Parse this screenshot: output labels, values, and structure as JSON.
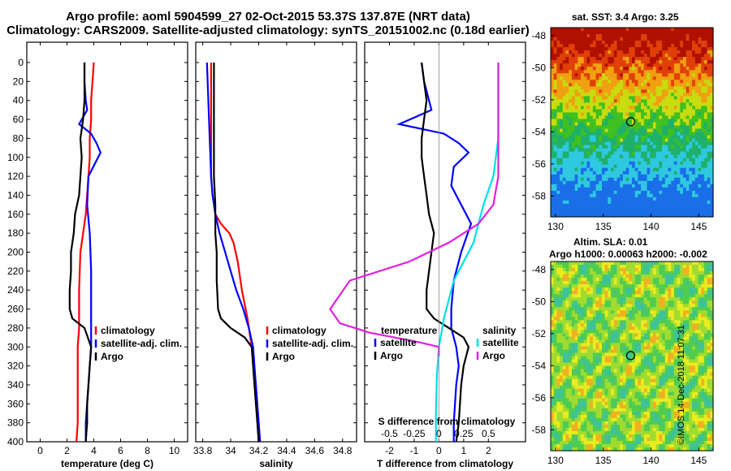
{
  "header": {
    "line1": "Argo profile: aoml 5904599_27 02-Oct-2015 53.37S 137.87E (NRT data)",
    "line2": "Climatology: CARS2009. Satellite-adjusted climatology: synTS_20151002.nc (0.18d earlier)"
  },
  "colors": {
    "climatology": "#ff0000",
    "satellite_adj": "#0000ff",
    "argo": "#000000",
    "s_satellite": "#00e0e8",
    "s_argo": "#e020e0"
  },
  "chart_data": [
    {
      "type": "line",
      "name": "temperature-profile",
      "xlabel": "temperature (deg C)",
      "ylabel": "",
      "xlim": [
        -1,
        11
      ],
      "ylim": [
        400,
        0
      ],
      "xticks": [
        "0",
        "2",
        "4",
        "6",
        "8",
        "10"
      ],
      "yticks": [
        "0",
        "20",
        "40",
        "60",
        "80",
        "100",
        "120",
        "140",
        "160",
        "180",
        "200",
        "220",
        "240",
        "260",
        "280",
        "300",
        "320",
        "340",
        "360",
        "380",
        "400"
      ],
      "legend": [
        "climatology",
        "satellite-adj. clim.",
        "Argo"
      ],
      "series": [
        {
          "name": "climatology",
          "color": "#ff0000",
          "x": [
            4.0,
            3.9,
            3.8,
            3.8,
            3.7,
            3.7,
            3.6,
            3.5,
            3.4,
            3.2,
            3.0,
            2.9,
            2.9,
            2.8,
            2.8,
            2.8,
            2.7
          ],
          "depth": [
            0,
            20,
            40,
            60,
            80,
            100,
            120,
            140,
            160,
            180,
            200,
            240,
            280,
            300,
            340,
            380,
            400
          ]
        },
        {
          "name": "satellite-adj. clim.",
          "color": "#0000ff",
          "x": [
            3.3,
            3.3,
            3.4,
            3.5,
            2.9,
            3.8,
            4.2,
            4.5,
            3.6,
            3.5,
            3.7,
            3.8,
            3.8,
            3.8,
            3.8,
            3.7,
            3.6,
            3.4,
            3.4
          ],
          "depth": [
            0,
            20,
            40,
            50,
            65,
            75,
            85,
            95,
            120,
            150,
            180,
            220,
            260,
            280,
            300,
            320,
            340,
            380,
            400
          ]
        },
        {
          "name": "Argo",
          "color": "#000000",
          "x": [
            3.3,
            3.3,
            3.3,
            3.2,
            3.0,
            3.1,
            3.0,
            2.9,
            2.6,
            2.5,
            2.3,
            2.3,
            2.2,
            2.2,
            2.4,
            3.3,
            3.8,
            3.7,
            3.6,
            3.5,
            3.5,
            3.4
          ],
          "depth": [
            0,
            20,
            40,
            60,
            80,
            100,
            120,
            140,
            160,
            180,
            200,
            220,
            240,
            260,
            270,
            280,
            300,
            320,
            340,
            360,
            380,
            400
          ]
        }
      ]
    },
    {
      "type": "line",
      "name": "salinity-profile",
      "xlabel": "salinity",
      "xlim": [
        33.75,
        34.9
      ],
      "ylim": [
        400,
        0
      ],
      "xticks": [
        "33.8",
        "34",
        "34.2",
        "34.4",
        "34.6",
        "34.8"
      ],
      "legend": [
        "climatology",
        "satellite-adj. clim.",
        "Argo"
      ],
      "series": [
        {
          "name": "climatology",
          "color": "#ff0000",
          "x": [
            33.86,
            33.86,
            33.86,
            33.86,
            33.87,
            33.89,
            33.93,
            33.99,
            34.02,
            34.05,
            34.08,
            34.12,
            34.15,
            34.18,
            34.2,
            34.21
          ],
          "depth": [
            0,
            40,
            80,
            120,
            140,
            160,
            170,
            180,
            190,
            210,
            240,
            270,
            300,
            340,
            380,
            400
          ]
        },
        {
          "name": "satellite-adj. clim.",
          "color": "#0000ff",
          "x": [
            33.83,
            33.84,
            33.85,
            33.86,
            33.87,
            33.89,
            33.92,
            33.96,
            34.0,
            34.04,
            34.09,
            34.13,
            34.16,
            34.18,
            34.2,
            34.21
          ],
          "depth": [
            0,
            40,
            80,
            120,
            140,
            160,
            180,
            200,
            220,
            240,
            260,
            280,
            300,
            340,
            380,
            400
          ]
        },
        {
          "name": "Argo",
          "color": "#000000",
          "x": [
            33.88,
            33.88,
            33.88,
            33.88,
            33.89,
            33.89,
            33.9,
            33.9,
            33.91,
            33.93,
            34.0,
            34.1,
            34.15,
            34.17,
            34.19,
            34.2
          ],
          "depth": [
            0,
            40,
            80,
            120,
            150,
            180,
            200,
            230,
            260,
            270,
            280,
            290,
            300,
            340,
            380,
            400
          ]
        }
      ]
    },
    {
      "type": "line",
      "name": "difference-profile",
      "xlabel": "T difference from climatology",
      "x2label": "S difference from climatology",
      "xlim": [
        -3,
        3.5
      ],
      "ylim": [
        400,
        0
      ],
      "xticks": [
        "-2",
        "-1",
        "0",
        "1",
        "2"
      ],
      "x2ticks": [
        "-0.5",
        "-0.25",
        "0",
        "0.25",
        "0.5"
      ],
      "legend_left": [
        "temperature",
        "satellite",
        "Argo"
      ],
      "legend_right": [
        "salinity",
        "satellite",
        "Argo"
      ],
      "series": [
        {
          "name": "T satellite",
          "color": "#0000ff",
          "x": [
            -0.7,
            -0.6,
            -0.4,
            -0.3,
            -1.6,
            0.2,
            0.8,
            1.2,
            0.6,
            0.5,
            0.9,
            1.3,
            0.9,
            0.6,
            0.5,
            0.5,
            0.7,
            0.8,
            0.7,
            0.6,
            0.6
          ],
          "depth": [
            0,
            20,
            40,
            50,
            65,
            75,
            85,
            95,
            110,
            130,
            150,
            170,
            200,
            230,
            260,
            280,
            300,
            320,
            340,
            380,
            400
          ]
        },
        {
          "name": "T Argo",
          "color": "#000000",
          "x": [
            -0.7,
            -0.6,
            -0.5,
            -0.6,
            -0.7,
            -0.7,
            -0.6,
            -0.5,
            -0.4,
            -0.2,
            -0.3,
            -0.4,
            -0.5,
            -0.5,
            -0.2,
            0.4,
            1.0,
            1.2,
            1.0,
            0.9,
            0.8,
            0.7
          ],
          "depth": [
            0,
            20,
            40,
            60,
            80,
            100,
            120,
            140,
            160,
            180,
            200,
            220,
            240,
            260,
            270,
            280,
            290,
            300,
            320,
            340,
            380,
            400
          ]
        },
        {
          "name": "S satellite",
          "color": "#00e0e8",
          "x": [
            0.6,
            0.6,
            0.6,
            0.55,
            0.45,
            0.4,
            0.35,
            0.25,
            0.15,
            0.1,
            0.05,
            0.0,
            -0.02,
            -0.03,
            -0.03
          ],
          "depth": [
            0,
            40,
            80,
            120,
            150,
            170,
            190,
            210,
            230,
            250,
            270,
            300,
            330,
            370,
            400
          ]
        },
        {
          "name": "S Argo",
          "color": "#e020e0",
          "x": [
            0.6,
            0.6,
            0.6,
            0.6,
            0.55,
            0.4,
            0.1,
            -0.3,
            -0.9,
            -1.1,
            -1.0,
            -0.7,
            -0.2,
            0.0,
            0.0
          ],
          "depth": [
            0,
            40,
            80,
            120,
            150,
            170,
            190,
            210,
            230,
            260,
            275,
            285,
            295,
            300,
            310
          ]
        }
      ]
    },
    {
      "type": "heatmap",
      "name": "sst-map",
      "title": "sat. SST: 3.4 Argo: 3.25",
      "xticks": [
        "130",
        "135",
        "140",
        "145"
      ],
      "yticks": [
        "-48",
        "-50",
        "-52",
        "-54",
        "-56",
        "-58"
      ],
      "xlim": [
        129.5,
        146.5
      ],
      "ylim": [
        -59.3,
        -47.5
      ],
      "marker": {
        "lon": 137.87,
        "lat": -53.37
      }
    },
    {
      "type": "heatmap",
      "name": "sla-map",
      "title1": "Altim. SLA: 0.01",
      "title2": "Argo h1000: 0.00063 h2000: -0.002",
      "xticks": [
        "130",
        "135",
        "140",
        "145"
      ],
      "yticks": [
        "-48",
        "-50",
        "-52",
        "-54",
        "-56",
        "-58"
      ],
      "xlim": [
        129.5,
        146.5
      ],
      "ylim": [
        -59.3,
        -47.5
      ],
      "marker": {
        "lon": 137.87,
        "lat": -53.37
      }
    }
  ],
  "credit": "©IMOS 14-Dec-2018 11:07:31"
}
